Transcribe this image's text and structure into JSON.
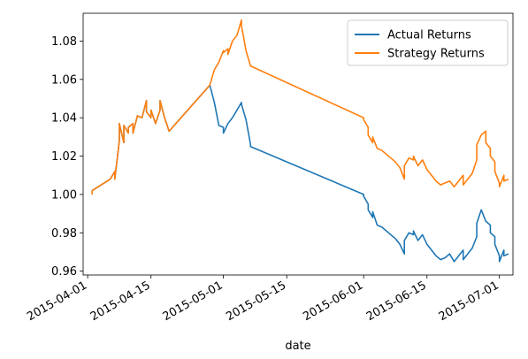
{
  "chart_data": {
    "type": "line",
    "title": "",
    "xlabel": "date",
    "ylabel": "",
    "x_ticks": [
      "2015-04-01",
      "2015-04-15",
      "2015-05-01",
      "2015-05-15",
      "2015-06-01",
      "2015-06-15",
      "2015-07-01"
    ],
    "y_ticks": [
      "0.96",
      "0.98",
      "1.00",
      "1.02",
      "1.04",
      "1.06",
      "1.08"
    ],
    "xlim": [
      "2015-03-31",
      "2015-07-04"
    ],
    "ylim": [
      0.958,
      1.0945
    ],
    "legend_position": "top-right",
    "grid": false,
    "series": [
      {
        "name": "Actual Returns",
        "color": "#1f77b4",
        "points": [
          [
            "2015-04-02",
            1.0
          ],
          [
            "2015-04-02",
            1.002
          ],
          [
            "2015-04-06",
            1.008
          ],
          [
            "2015-04-07",
            1.012
          ],
          [
            "2015-04-07",
            1.008
          ],
          [
            "2015-04-08",
            1.028
          ],
          [
            "2015-04-08",
            1.037
          ],
          [
            "2015-04-09",
            1.027
          ],
          [
            "2015-04-09",
            1.036
          ],
          [
            "2015-04-10",
            1.032
          ],
          [
            "2015-04-10",
            1.035
          ],
          [
            "2015-04-11",
            1.037
          ],
          [
            "2015-04-11",
            1.032
          ],
          [
            "2015-04-12",
            1.041
          ],
          [
            "2015-04-13",
            1.04
          ],
          [
            "2015-04-14",
            1.049
          ],
          [
            "2015-04-14",
            1.043
          ],
          [
            "2015-04-15",
            1.04
          ],
          [
            "2015-04-15",
            1.044
          ],
          [
            "2015-04-16",
            1.037
          ],
          [
            "2015-04-17",
            1.044
          ],
          [
            "2015-04-17",
            1.049
          ],
          [
            "2015-04-18",
            1.04
          ],
          [
            "2015-04-19",
            1.033
          ],
          [
            "2015-04-28",
            1.057
          ],
          [
            "2015-04-29",
            1.048
          ],
          [
            "2015-04-30",
            1.036
          ],
          [
            "2015-05-01",
            1.035
          ],
          [
            "2015-05-01",
            1.032
          ],
          [
            "2015-05-02",
            1.037
          ],
          [
            "2015-05-03",
            1.04
          ],
          [
            "2015-05-05",
            1.048
          ],
          [
            "2015-05-05",
            1.047
          ],
          [
            "2015-05-06",
            1.039
          ],
          [
            "2015-05-07",
            1.026
          ],
          [
            "2015-05-07",
            1.025
          ],
          [
            "2015-06-01",
            1.0
          ],
          [
            "2015-06-01",
            0.999
          ],
          [
            "2015-06-02",
            0.995
          ],
          [
            "2015-06-02",
            0.992
          ],
          [
            "2015-06-03",
            0.988
          ],
          [
            "2015-06-03",
            0.991
          ],
          [
            "2015-06-04",
            0.984
          ],
          [
            "2015-06-05",
            0.983
          ],
          [
            "2015-06-08",
            0.977
          ],
          [
            "2015-06-09",
            0.974
          ],
          [
            "2015-06-10",
            0.969
          ],
          [
            "2015-06-10",
            0.976
          ],
          [
            "2015-06-11",
            0.98
          ],
          [
            "2015-06-12",
            0.979
          ],
          [
            "2015-06-12",
            0.981
          ],
          [
            "2015-06-13",
            0.976
          ],
          [
            "2015-06-14",
            0.979
          ],
          [
            "2015-06-15",
            0.974
          ],
          [
            "2015-06-17",
            0.968
          ],
          [
            "2015-06-18",
            0.966
          ],
          [
            "2015-06-19",
            0.967
          ],
          [
            "2015-06-20",
            0.969
          ],
          [
            "2015-06-21",
            0.965
          ],
          [
            "2015-06-22",
            0.968
          ],
          [
            "2015-06-23",
            0.971
          ],
          [
            "2015-06-23",
            0.966
          ],
          [
            "2015-06-25",
            0.972
          ],
          [
            "2015-06-26",
            0.978
          ],
          [
            "2015-06-26",
            0.985
          ],
          [
            "2015-06-27",
            0.992
          ],
          [
            "2015-06-28",
            0.986
          ],
          [
            "2015-06-29",
            0.984
          ],
          [
            "2015-06-29",
            0.98
          ],
          [
            "2015-06-30",
            0.978
          ],
          [
            "2015-06-30",
            0.974
          ],
          [
            "2015-07-01",
            0.968
          ],
          [
            "2015-07-01",
            0.965
          ],
          [
            "2015-07-02",
            0.971
          ],
          [
            "2015-07-02",
            0.968
          ],
          [
            "2015-07-03",
            0.969
          ]
        ]
      },
      {
        "name": "Strategy Returns",
        "color": "#ff7f0e",
        "points": [
          [
            "2015-04-02",
            1.0
          ],
          [
            "2015-04-02",
            1.002
          ],
          [
            "2015-04-06",
            1.008
          ],
          [
            "2015-04-07",
            1.012
          ],
          [
            "2015-04-07",
            1.008
          ],
          [
            "2015-04-08",
            1.028
          ],
          [
            "2015-04-08",
            1.037
          ],
          [
            "2015-04-09",
            1.027
          ],
          [
            "2015-04-09",
            1.036
          ],
          [
            "2015-04-10",
            1.032
          ],
          [
            "2015-04-10",
            1.035
          ],
          [
            "2015-04-11",
            1.037
          ],
          [
            "2015-04-11",
            1.032
          ],
          [
            "2015-04-12",
            1.041
          ],
          [
            "2015-04-13",
            1.04
          ],
          [
            "2015-04-14",
            1.049
          ],
          [
            "2015-04-14",
            1.043
          ],
          [
            "2015-04-15",
            1.04
          ],
          [
            "2015-04-15",
            1.044
          ],
          [
            "2015-04-16",
            1.037
          ],
          [
            "2015-04-17",
            1.044
          ],
          [
            "2015-04-17",
            1.049
          ],
          [
            "2015-04-18",
            1.04
          ],
          [
            "2015-04-19",
            1.033
          ],
          [
            "2015-04-28",
            1.057
          ],
          [
            "2015-04-29",
            1.065
          ],
          [
            "2015-04-30",
            1.069
          ],
          [
            "2015-05-01",
            1.075
          ],
          [
            "2015-05-01",
            1.074
          ],
          [
            "2015-05-02",
            1.076
          ],
          [
            "2015-05-02",
            1.073
          ],
          [
            "2015-05-03",
            1.08
          ],
          [
            "2015-05-04",
            1.083
          ],
          [
            "2015-05-05",
            1.091
          ],
          [
            "2015-05-05",
            1.088
          ],
          [
            "2015-05-06",
            1.075
          ],
          [
            "2015-05-07",
            1.067
          ],
          [
            "2015-06-01",
            1.04
          ],
          [
            "2015-06-01",
            1.039
          ],
          [
            "2015-06-02",
            1.035
          ],
          [
            "2015-06-02",
            1.031
          ],
          [
            "2015-06-03",
            1.027
          ],
          [
            "2015-06-03",
            1.03
          ],
          [
            "2015-06-04",
            1.024
          ],
          [
            "2015-06-05",
            1.023
          ],
          [
            "2015-06-08",
            1.017
          ],
          [
            "2015-06-09",
            1.014
          ],
          [
            "2015-06-10",
            1.008
          ],
          [
            "2015-06-10",
            1.015
          ],
          [
            "2015-06-11",
            1.019
          ],
          [
            "2015-06-12",
            1.018
          ],
          [
            "2015-06-12",
            1.02
          ],
          [
            "2015-06-13",
            1.015
          ],
          [
            "2015-06-14",
            1.018
          ],
          [
            "2015-06-15",
            1.013
          ],
          [
            "2015-06-17",
            1.007
          ],
          [
            "2015-06-18",
            1.005
          ],
          [
            "2015-06-19",
            1.006
          ],
          [
            "2015-06-20",
            1.007
          ],
          [
            "2015-06-21",
            1.004
          ],
          [
            "2015-06-22",
            1.007
          ],
          [
            "2015-06-23",
            1.01
          ],
          [
            "2015-06-23",
            1.005
          ],
          [
            "2015-06-25",
            1.011
          ],
          [
            "2015-06-26",
            1.018
          ],
          [
            "2015-06-26",
            1.026
          ],
          [
            "2015-06-27",
            1.031
          ],
          [
            "2015-06-28",
            1.033
          ],
          [
            "2015-06-28",
            1.027
          ],
          [
            "2015-06-29",
            1.024
          ],
          [
            "2015-06-29",
            1.02
          ],
          [
            "2015-06-30",
            1.017
          ],
          [
            "2015-06-30",
            1.012
          ],
          [
            "2015-07-01",
            1.006
          ],
          [
            "2015-07-01",
            1.004
          ],
          [
            "2015-07-02",
            1.01
          ],
          [
            "2015-07-02",
            1.007
          ],
          [
            "2015-07-03",
            1.008
          ]
        ]
      }
    ]
  }
}
